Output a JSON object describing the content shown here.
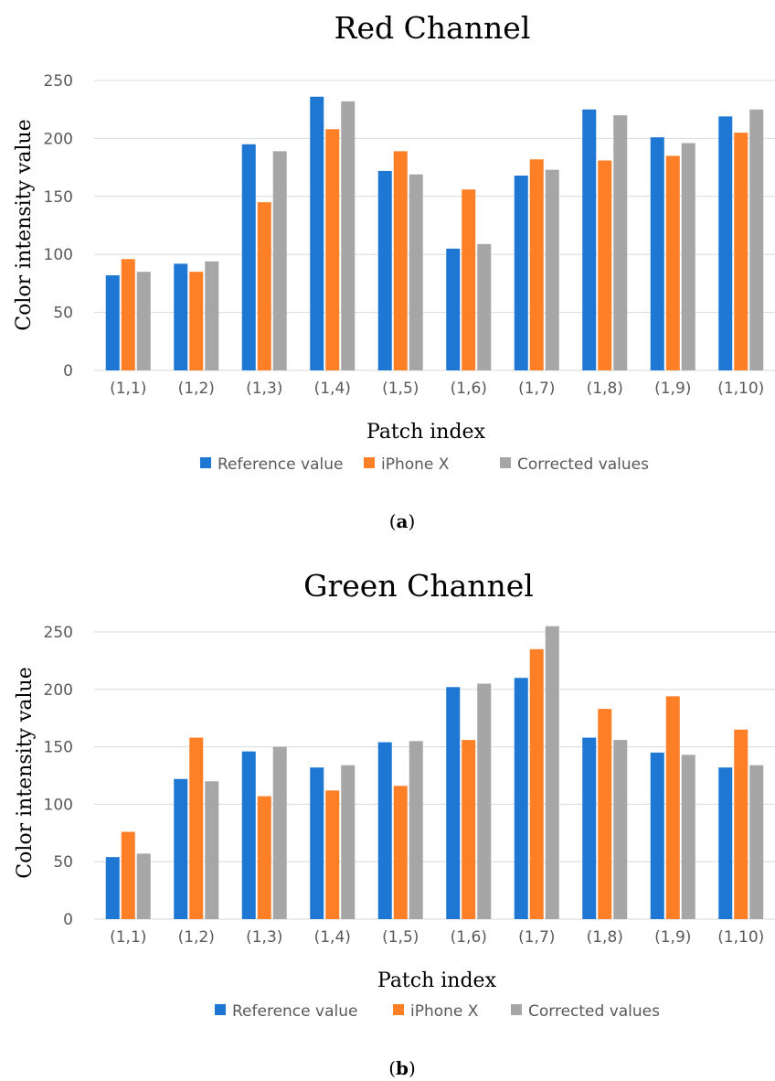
{
  "colors": {
    "reference": "#1f77d4",
    "iphone": "#ff7f27",
    "corrected": "#a6a6a6"
  },
  "chart_data": [
    {
      "type": "bar",
      "title": "Red Channel",
      "xlabel": "Patch index",
      "ylabel": "Color intensity value",
      "ylim": [
        0,
        250
      ],
      "yticks": [
        "0",
        "50",
        "100",
        "150",
        "200",
        "250"
      ],
      "grid": true,
      "legend_position": "bottom",
      "categories": [
        "(1,1)",
        "(1,2)",
        "(1,3)",
        "(1,4)",
        "(1,5)",
        "(1,6)",
        "(1,7)",
        "(1,8)",
        "(1,9)",
        "(1,10)"
      ],
      "series": [
        {
          "name": "Reference value",
          "values": [
            82,
            92,
            195,
            236,
            172,
            105,
            168,
            225,
            201,
            219
          ]
        },
        {
          "name": "iPhone X",
          "values": [
            96,
            85,
            145,
            208,
            189,
            156,
            182,
            181,
            185,
            205
          ]
        },
        {
          "name": "Corrected values",
          "values": [
            85,
            94,
            189,
            232,
            169,
            109,
            173,
            220,
            196,
            225
          ]
        }
      ],
      "caption": "a"
    },
    {
      "type": "bar",
      "title": "Green Channel",
      "xlabel": "Patch index",
      "ylabel": "Color intensity value",
      "ylim": [
        0,
        250
      ],
      "yticks": [
        "0",
        "50",
        "100",
        "150",
        "200",
        "250"
      ],
      "grid": true,
      "legend_position": "bottom",
      "categories": [
        "(1,1)",
        "(1,2)",
        "(1,3)",
        "(1,4)",
        "(1,5)",
        "(1,6)",
        "(1,7)",
        "(1,8)",
        "(1,9)",
        "(1,10)"
      ],
      "series": [
        {
          "name": "Reference value",
          "values": [
            54,
            122,
            146,
            132,
            154,
            202,
            210,
            158,
            145,
            132
          ]
        },
        {
          "name": "iPhone X",
          "values": [
            76,
            158,
            107,
            112,
            116,
            156,
            235,
            183,
            194,
            165
          ]
        },
        {
          "name": "Corrected values",
          "values": [
            57,
            120,
            150,
            134,
            155,
            205,
            255,
            156,
            143,
            134
          ]
        }
      ],
      "caption": "b"
    }
  ]
}
